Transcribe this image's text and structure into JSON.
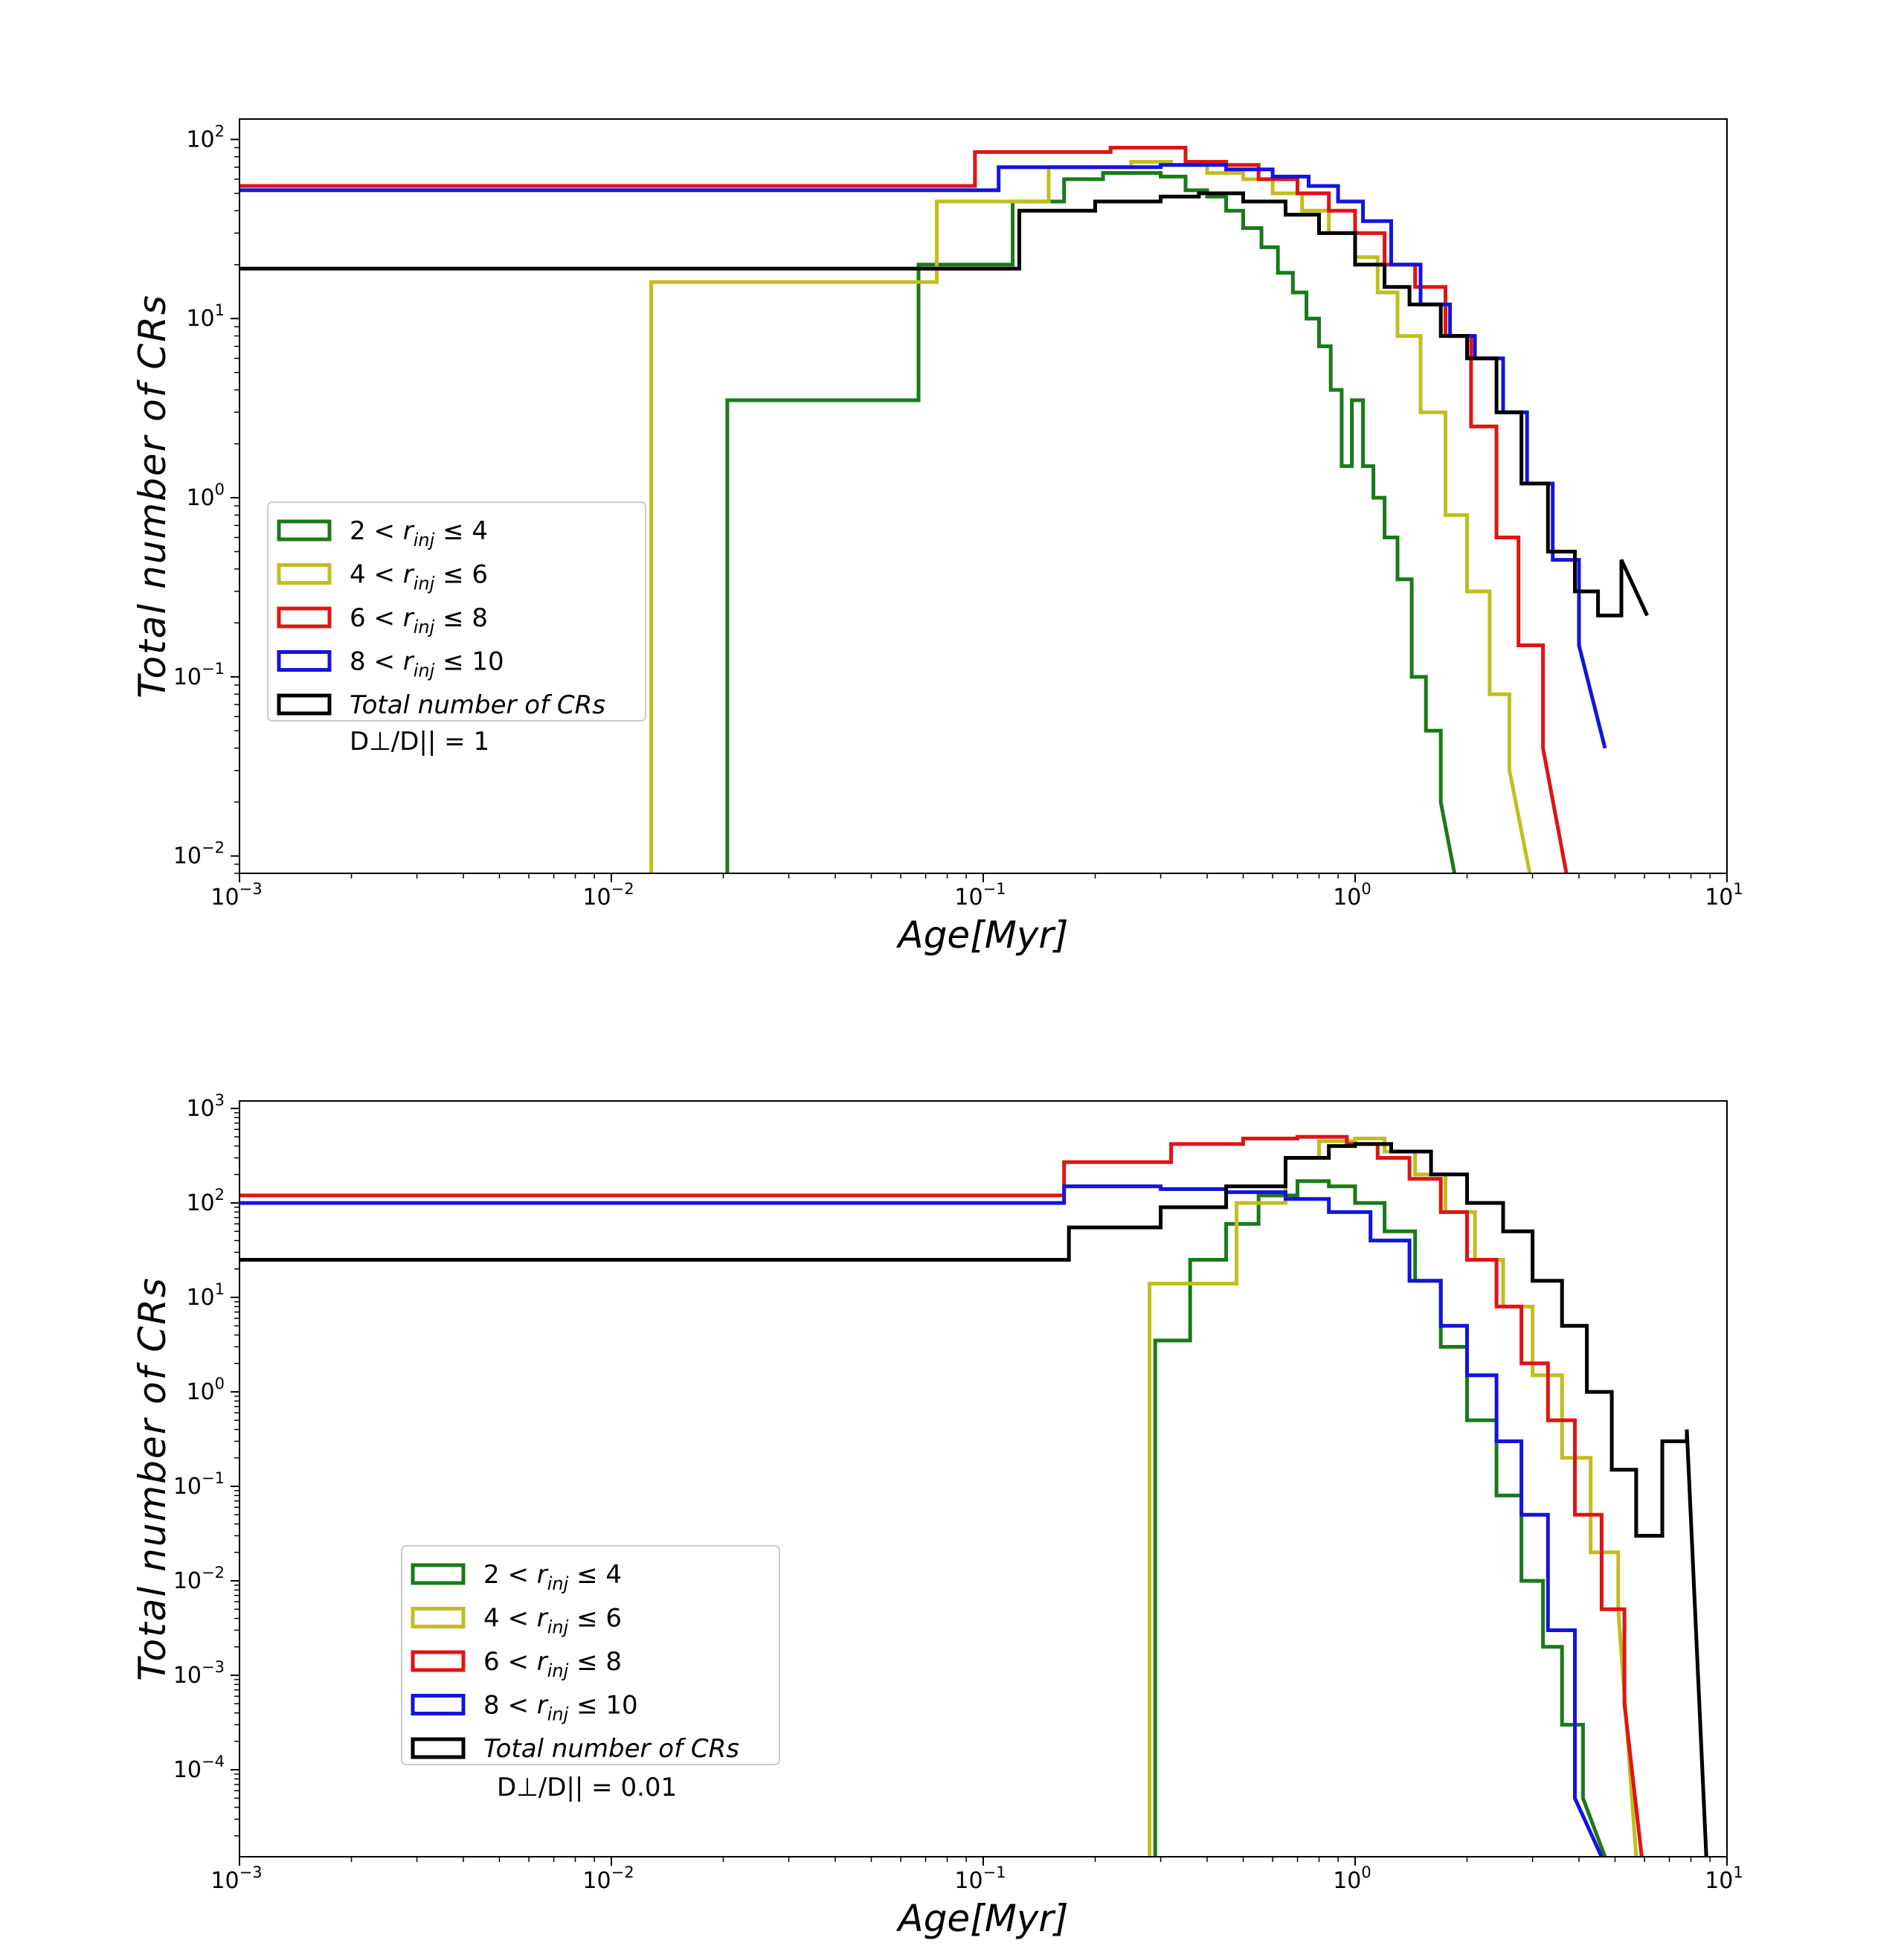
{
  "chart_data": [
    {
      "type": "line",
      "xscale": "log",
      "yscale": "log",
      "xlim": [
        0.001,
        10
      ],
      "ylim": [
        0.008,
        130
      ],
      "xlabel": "Age[Myr]",
      "ylabel": "Total number of CRs",
      "xticks": [
        {
          "value": 0.001,
          "base": "10",
          "exp": "−3"
        },
        {
          "value": 0.01,
          "base": "10",
          "exp": "−2"
        },
        {
          "value": 0.1,
          "base": "10",
          "exp": "−1"
        },
        {
          "value": 1,
          "base": "10",
          "exp": "0"
        },
        {
          "value": 10,
          "base": "10",
          "exp": "1"
        }
      ],
      "yticks": [
        {
          "value": 100,
          "base": "10",
          "exp": "2"
        },
        {
          "value": 10,
          "base": "10",
          "exp": "1"
        },
        {
          "value": 1,
          "base": "10",
          "exp": "0"
        },
        {
          "value": 0.1,
          "base": "10",
          "exp": "−1"
        },
        {
          "value": 0.01,
          "base": "10",
          "exp": "−2"
        }
      ],
      "legend_location": "center-left",
      "annotation": "D⊥/D|| = 1",
      "series": [
        {
          "name": "2 < r_inj ≤ 4",
          "label_prefix": "2 <",
          "label_suffix": "≤ 4",
          "color": "#1a7a1a",
          "x": [
            0.0205,
            0.0205,
            0.067,
            0.067,
            0.12,
            0.12,
            0.165,
            0.165,
            0.21,
            0.21,
            0.3,
            0.3,
            0.35,
            0.35,
            0.4,
            0.4,
            0.45,
            0.45,
            0.5,
            0.5,
            0.56,
            0.56,
            0.62,
            0.62,
            0.68,
            0.68,
            0.74,
            0.74,
            0.8,
            0.8,
            0.86,
            0.86,
            0.92,
            0.92,
            0.98,
            0.98,
            1.05,
            1.05,
            1.12,
            1.12,
            1.2,
            1.2,
            1.3,
            1.3,
            1.42,
            1.42,
            1.55,
            1.55,
            1.7,
            1.7,
            1.85
          ],
          "y": [
            0.008,
            3.5,
            3.5,
            20,
            20,
            45,
            45,
            60,
            60,
            65,
            65,
            62,
            62,
            52,
            52,
            48,
            48,
            40,
            40,
            32,
            32,
            25,
            25,
            18,
            18,
            14,
            14,
            10,
            10,
            7,
            7,
            4,
            4,
            1.5,
            1.5,
            3.5,
            3.5,
            1.5,
            1.5,
            1.0,
            1.0,
            0.6,
            0.6,
            0.35,
            0.35,
            0.1,
            0.1,
            0.05,
            0.05,
            0.02,
            0.008
          ]
        },
        {
          "name": "4 < r_inj ≤ 6",
          "label_prefix": "4 <",
          "label_suffix": "≤ 6",
          "color": "#bfbf1f",
          "x": [
            0.0128,
            0.0128,
            0.075,
            0.075,
            0.15,
            0.15,
            0.25,
            0.25,
            0.32,
            0.32,
            0.4,
            0.4,
            0.5,
            0.5,
            0.6,
            0.6,
            0.72,
            0.72,
            0.85,
            0.85,
            1.0,
            1.0,
            1.15,
            1.15,
            1.3,
            1.3,
            1.5,
            1.5,
            1.75,
            1.75,
            2.0,
            2.0,
            2.3,
            2.3,
            2.6,
            2.6,
            2.95
          ],
          "y": [
            0.008,
            16,
            16,
            45,
            45,
            70,
            70,
            75,
            75,
            72,
            72,
            65,
            65,
            60,
            60,
            50,
            50,
            40,
            40,
            30,
            30,
            22,
            22,
            14,
            14,
            8,
            8,
            3,
            3,
            0.8,
            0.8,
            0.3,
            0.3,
            0.08,
            0.08,
            0.03,
            0.008
          ]
        },
        {
          "name": "6 < r_inj ≤ 8",
          "label_prefix": "6 <",
          "label_suffix": "≤ 8",
          "color": "#e01414",
          "x": [
            0.001,
            0.095,
            0.095,
            0.22,
            0.22,
            0.35,
            0.35,
            0.45,
            0.45,
            0.55,
            0.55,
            0.7,
            0.7,
            0.85,
            0.85,
            1.0,
            1.0,
            1.2,
            1.2,
            1.45,
            1.45,
            1.75,
            1.75,
            2.05,
            2.05,
            2.4,
            2.4,
            2.75,
            2.75,
            3.2,
            3.2,
            3.7
          ],
          "y": [
            55,
            55,
            85,
            85,
            90,
            90,
            75,
            75,
            72,
            72,
            60,
            60,
            50,
            50,
            40,
            40,
            30,
            30,
            20,
            20,
            15,
            15,
            8,
            8,
            2.5,
            2.5,
            0.6,
            0.6,
            0.15,
            0.15,
            0.04,
            0.008
          ]
        },
        {
          "name": "8 < r_inj ≤ 10",
          "label_prefix": "8 <",
          "label_suffix": "≤ 10",
          "color": "#1414dd",
          "x": [
            0.001,
            0.11,
            0.11,
            0.3,
            0.3,
            0.45,
            0.45,
            0.6,
            0.6,
            0.75,
            0.75,
            0.9,
            0.9,
            1.05,
            1.05,
            1.25,
            1.25,
            1.5,
            1.5,
            1.8,
            1.8,
            2.1,
            2.1,
            2.5,
            2.5,
            2.9,
            2.9,
            3.4,
            3.4,
            4.0,
            4.0,
            4.7
          ],
          "y": [
            52,
            52,
            70,
            70,
            72,
            72,
            68,
            68,
            62,
            62,
            55,
            55,
            45,
            45,
            35,
            35,
            20,
            20,
            12,
            12,
            8,
            8,
            6,
            6,
            3,
            3,
            1.2,
            1.2,
            0.45,
            0.45,
            0.15,
            0.04
          ]
        },
        {
          "name": "Total number of CRs",
          "label_italic": "Total  number  of  CRs",
          "color": "#000000",
          "x": [
            0.001,
            0.125,
            0.125,
            0.2,
            0.2,
            0.3,
            0.3,
            0.38,
            0.38,
            0.5,
            0.5,
            0.65,
            0.65,
            0.8,
            0.8,
            1.0,
            1.0,
            1.2,
            1.2,
            1.4,
            1.4,
            1.7,
            1.7,
            2.0,
            2.0,
            2.4,
            2.4,
            2.8,
            2.8,
            3.3,
            3.3,
            3.9,
            3.9,
            4.5,
            4.5,
            5.2,
            5.2,
            6.1
          ],
          "y": [
            19,
            19,
            40,
            40,
            45,
            45,
            48,
            48,
            50,
            50,
            45,
            45,
            38,
            38,
            30,
            30,
            20,
            20,
            15,
            15,
            12,
            12,
            8,
            8,
            6,
            6,
            3,
            3,
            1.2,
            1.2,
            0.5,
            0.5,
            0.3,
            0.3,
            0.22,
            0.22,
            0.45,
            0.22
          ]
        }
      ]
    },
    {
      "type": "line",
      "xscale": "log",
      "yscale": "log",
      "xlim": [
        0.001,
        10
      ],
      "ylim": [
        1.2e-05,
        1200
      ],
      "xlabel": "Age[Myr]",
      "ylabel": "Total number of CRs",
      "xticks": [
        {
          "value": 0.001,
          "base": "10",
          "exp": "−3"
        },
        {
          "value": 0.01,
          "base": "10",
          "exp": "−2"
        },
        {
          "value": 0.1,
          "base": "10",
          "exp": "−1"
        },
        {
          "value": 1,
          "base": "10",
          "exp": "0"
        },
        {
          "value": 10,
          "base": "10",
          "exp": "1"
        }
      ],
      "yticks": [
        {
          "value": 1000,
          "base": "10",
          "exp": "3"
        },
        {
          "value": 100,
          "base": "10",
          "exp": "2"
        },
        {
          "value": 10,
          "base": "10",
          "exp": "1"
        },
        {
          "value": 1,
          "base": "10",
          "exp": "0"
        },
        {
          "value": 0.1,
          "base": "10",
          "exp": "−1"
        },
        {
          "value": 0.01,
          "base": "10",
          "exp": "−2"
        },
        {
          "value": 0.001,
          "base": "10",
          "exp": "−3"
        },
        {
          "value": 0.0001,
          "base": "10",
          "exp": "−4"
        }
      ],
      "legend_location": "lower-left",
      "annotation": "D⊥/D|| = 0.01",
      "series": [
        {
          "name": "2 < r_inj ≤ 4",
          "label_prefix": "2 <",
          "label_suffix": "≤ 4",
          "color": "#1a7a1a",
          "x": [
            0.29,
            0.29,
            0.36,
            0.36,
            0.45,
            0.45,
            0.55,
            0.55,
            0.7,
            0.7,
            0.85,
            0.85,
            1.0,
            1.0,
            1.2,
            1.2,
            1.45,
            1.45,
            1.7,
            1.7,
            2.0,
            2.0,
            2.4,
            2.4,
            2.8,
            2.8,
            3.2,
            3.2,
            3.6,
            3.6,
            4.1,
            4.1,
            4.7
          ],
          "y": [
            1.2e-05,
            3.5,
            3.5,
            25,
            25,
            60,
            60,
            120,
            120,
            170,
            170,
            150,
            150,
            100,
            100,
            50,
            50,
            15,
            15,
            3,
            3,
            0.5,
            0.5,
            0.08,
            0.08,
            0.01,
            0.01,
            0.002,
            0.002,
            0.0003,
            0.0003,
            5e-05,
            1.2e-05
          ]
        },
        {
          "name": "4 < r_inj ≤ 6",
          "label_prefix": "4 <",
          "label_suffix": "≤ 6",
          "color": "#bfbf1f",
          "x": [
            0.28,
            0.28,
            0.48,
            0.48,
            0.65,
            0.65,
            0.8,
            0.8,
            1.0,
            1.0,
            1.2,
            1.2,
            1.45,
            1.45,
            1.75,
            1.75,
            2.1,
            2.1,
            2.5,
            2.5,
            3.0,
            3.0,
            3.6,
            3.6,
            4.3,
            4.3,
            5.1,
            5.1,
            5.7
          ],
          "y": [
            1.2e-05,
            14,
            14,
            100,
            100,
            300,
            300,
            450,
            450,
            480,
            480,
            350,
            350,
            200,
            200,
            80,
            80,
            25,
            25,
            8,
            8,
            1.5,
            1.5,
            0.2,
            0.2,
            0.02,
            0.02,
            0.005,
            1.2e-05
          ]
        },
        {
          "name": "6 < r_inj ≤ 8",
          "label_prefix": "6 <",
          "label_suffix": "≤ 8",
          "color": "#e01414",
          "x": [
            0.001,
            0.165,
            0.165,
            0.32,
            0.32,
            0.5,
            0.5,
            0.7,
            0.7,
            0.95,
            0.95,
            1.15,
            1.15,
            1.4,
            1.4,
            1.7,
            1.7,
            2.0,
            2.0,
            2.4,
            2.4,
            2.8,
            2.8,
            3.3,
            3.3,
            3.9,
            3.9,
            4.6,
            4.6,
            5.3,
            5.3,
            5.9
          ],
          "y": [
            120,
            120,
            270,
            270,
            420,
            420,
            480,
            480,
            500,
            500,
            420,
            420,
            300,
            300,
            180,
            180,
            80,
            80,
            25,
            25,
            8,
            8,
            2,
            2,
            0.5,
            0.5,
            0.05,
            0.05,
            0.005,
            0.005,
            0.0005,
            1.2e-05
          ]
        },
        {
          "name": "8 < r_inj ≤ 10",
          "label_prefix": "8 <",
          "label_suffix": "≤ 10",
          "color": "#1414dd",
          "x": [
            0.001,
            0.165,
            0.165,
            0.3,
            0.3,
            0.45,
            0.45,
            0.65,
            0.65,
            0.85,
            0.85,
            1.1,
            1.1,
            1.4,
            1.4,
            1.7,
            1.7,
            2.0,
            2.0,
            2.4,
            2.4,
            2.8,
            2.8,
            3.3,
            3.3,
            3.9,
            3.9,
            4.6
          ],
          "y": [
            100,
            100,
            150,
            150,
            140,
            140,
            130,
            130,
            110,
            110,
            80,
            80,
            40,
            40,
            15,
            15,
            5,
            5,
            1.5,
            1.5,
            0.3,
            0.3,
            0.05,
            0.05,
            0.003,
            0.003,
            5e-05,
            1.2e-05
          ]
        },
        {
          "name": "Total number of CRs",
          "label_italic": "Total  number  of  CRs",
          "color": "#000000",
          "x": [
            0.001,
            0.17,
            0.17,
            0.3,
            0.3,
            0.45,
            0.45,
            0.65,
            0.65,
            0.85,
            0.85,
            1.0,
            1.0,
            1.25,
            1.25,
            1.6,
            1.6,
            2.0,
            2.0,
            2.5,
            2.5,
            3.0,
            3.0,
            3.6,
            3.6,
            4.2,
            4.2,
            4.9,
            4.9,
            5.7,
            5.7,
            6.7,
            6.7,
            7.8,
            7.8,
            8.8
          ],
          "y": [
            25,
            25,
            55,
            55,
            90,
            90,
            150,
            150,
            300,
            300,
            400,
            400,
            420,
            420,
            350,
            350,
            200,
            200,
            100,
            100,
            50,
            50,
            15,
            15,
            5,
            5,
            1,
            1,
            0.15,
            0.15,
            0.03,
            0.03,
            0.3,
            0.3,
            0.4,
            1.2e-05
          ]
        }
      ]
    }
  ]
}
